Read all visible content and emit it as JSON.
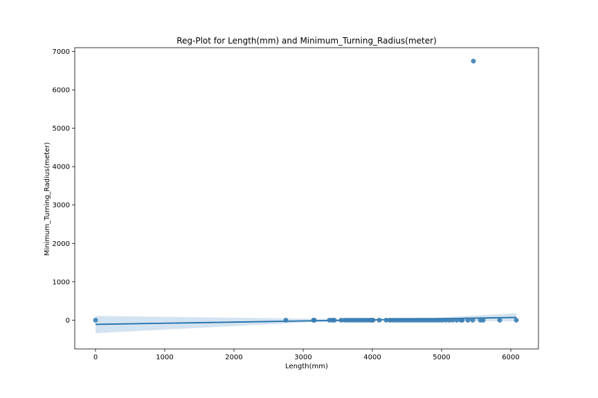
{
  "chart_data": {
    "type": "scatter",
    "title": "Reg-Plot for Length(mm) and Minimum_Turning_Radius(meter)",
    "xlabel": "Length(mm)",
    "ylabel": "Minimum_Turning_Radius(meter)",
    "xlim": [
      -300,
      6400
    ],
    "ylim": [
      -750,
      7100
    ],
    "xticks": [
      0,
      1000,
      2000,
      3000,
      4000,
      5000,
      6000
    ],
    "yticks": [
      0,
      1000,
      2000,
      3000,
      4000,
      5000,
      6000,
      7000
    ],
    "grid": false,
    "legend": "none",
    "point_color": "#3a7eb4",
    "line_color": "#1f6faa",
    "band_color": "#c6d9ec",
    "points": [
      [
        0,
        0
      ],
      [
        2750,
        0
      ],
      [
        3150,
        0
      ],
      [
        3160,
        0
      ],
      [
        3380,
        0
      ],
      [
        3420,
        0
      ],
      [
        3450,
        0
      ],
      [
        3550,
        0
      ],
      [
        3600,
        0
      ],
      [
        3640,
        0
      ],
      [
        3680,
        0
      ],
      [
        3720,
        0
      ],
      [
        3760,
        0
      ],
      [
        3800,
        0
      ],
      [
        3840,
        0
      ],
      [
        3880,
        0
      ],
      [
        3920,
        0
      ],
      [
        3960,
        0
      ],
      [
        3990,
        0
      ],
      [
        4010,
        0
      ],
      [
        4100,
        0
      ],
      [
        4200,
        0
      ],
      [
        4250,
        0
      ],
      [
        4290,
        0
      ],
      [
        4330,
        0
      ],
      [
        4370,
        0
      ],
      [
        4410,
        0
      ],
      [
        4450,
        0
      ],
      [
        4490,
        0
      ],
      [
        4530,
        0
      ],
      [
        4570,
        0
      ],
      [
        4610,
        0
      ],
      [
        4650,
        0
      ],
      [
        4690,
        0
      ],
      [
        4730,
        0
      ],
      [
        4770,
        0
      ],
      [
        4810,
        0
      ],
      [
        4850,
        0
      ],
      [
        4890,
        0
      ],
      [
        4930,
        0
      ],
      [
        4970,
        0
      ],
      [
        5010,
        0
      ],
      [
        5060,
        0
      ],
      [
        5110,
        0
      ],
      [
        5160,
        0
      ],
      [
        5220,
        0
      ],
      [
        5280,
        0
      ],
      [
        5300,
        0
      ],
      [
        5380,
        0
      ],
      [
        5450,
        0
      ],
      [
        5460,
        6750
      ],
      [
        5560,
        0
      ],
      [
        5600,
        0
      ],
      [
        5840,
        0
      ],
      [
        6080,
        0
      ]
    ],
    "regression": {
      "x": [
        0,
        6080
      ],
      "y": [
        -110,
        70
      ]
    },
    "confidence_band": {
      "x": [
        0,
        3000,
        4500,
        6080
      ],
      "lower": [
        -340,
        -60,
        -10,
        -30
      ],
      "upper": [
        110,
        40,
        20,
        180
      ]
    }
  }
}
